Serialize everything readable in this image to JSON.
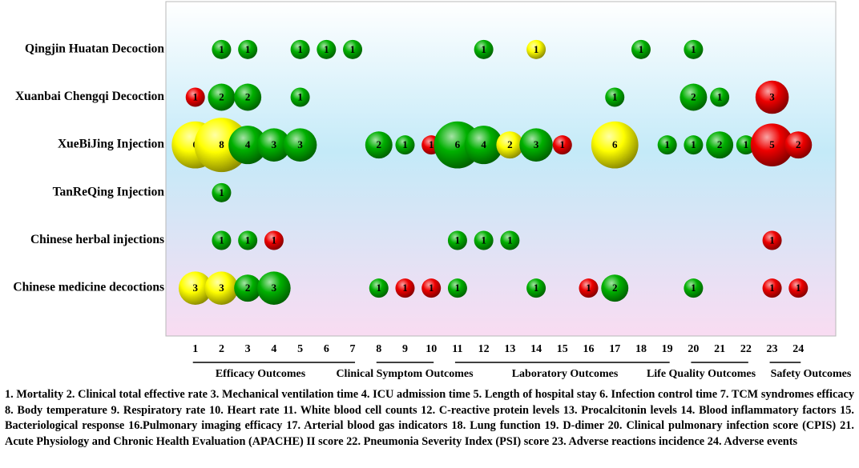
{
  "chart_data": {
    "type": "bubble",
    "xticks": [
      1,
      2,
      3,
      4,
      5,
      6,
      7,
      8,
      9,
      10,
      11,
      12,
      13,
      14,
      15,
      16,
      17,
      18,
      19,
      20,
      21,
      22,
      23,
      24
    ],
    "xlim": [
      0,
      25
    ],
    "groups": [
      {
        "label": "Efficacy Outcomes",
        "start": 1,
        "end": 7
      },
      {
        "label": "Clinical Symptom Outcomes",
        "start": 8,
        "end": 10
      },
      {
        "label": "Laboratory Outcomes",
        "start": 11,
        "end": 19
      },
      {
        "label": "Life Quality Outcomes",
        "start": 20,
        "end": 22
      },
      {
        "label": "Safety Outcomes",
        "start": 23,
        "end": 24
      }
    ],
    "series": [
      {
        "name": "Qingjin Huatan Decoction",
        "x": [
          2,
          3,
          5,
          6,
          7,
          12,
          14,
          18,
          20
        ],
        "values": [
          1,
          1,
          1,
          1,
          1,
          1,
          1,
          1,
          1
        ],
        "colors": [
          "#00b000",
          "#00b000",
          "#00b000",
          "#00b000",
          "#00b000",
          "#00b000",
          "#ffff00",
          "#00b000",
          "#00b000"
        ]
      },
      {
        "name": "Xuanbai Chengqi Decoction",
        "x": [
          1,
          2,
          3,
          5,
          17,
          20,
          21,
          23
        ],
        "values": [
          1,
          2,
          2,
          1,
          1,
          2,
          1,
          3
        ],
        "colors": [
          "#ee0000",
          "#00b000",
          "#00b000",
          "#00b000",
          "#00b000",
          "#00b000",
          "#00b000",
          "#ee0000"
        ]
      },
      {
        "name": "XueBiJing Injection",
        "x": [
          1,
          2,
          3,
          4,
          5,
          8,
          9,
          10,
          11,
          12,
          13,
          14,
          15,
          17,
          19,
          20,
          21,
          22,
          23,
          24
        ],
        "values": [
          6,
          8,
          4,
          3,
          3,
          2,
          1,
          1,
          6,
          4,
          2,
          3,
          1,
          6,
          1,
          1,
          2,
          1,
          5,
          2
        ],
        "colors": [
          "#ffff00",
          "#ffff00",
          "#00b000",
          "#00b000",
          "#00b000",
          "#00b000",
          "#00b000",
          "#ee0000",
          "#00b000",
          "#00b000",
          "#ffff00",
          "#00b000",
          "#ee0000",
          "#ffff00",
          "#00b000",
          "#00b000",
          "#00b000",
          "#00b000",
          "#ee0000",
          "#ee0000"
        ]
      },
      {
        "name": "TanReQing Injection",
        "x": [
          2
        ],
        "values": [
          1
        ],
        "colors": [
          "#00b000"
        ]
      },
      {
        "name": "Chinese herbal injections",
        "x": [
          2,
          3,
          4,
          11,
          12,
          13,
          23
        ],
        "values": [
          1,
          1,
          1,
          1,
          1,
          1,
          1
        ],
        "colors": [
          "#00b000",
          "#00b000",
          "#ee0000",
          "#00b000",
          "#00b000",
          "#00b000",
          "#ee0000"
        ]
      },
      {
        "name": "Chinese medicine decoctions",
        "x": [
          1,
          2,
          3,
          4,
          8,
          9,
          10,
          11,
          14,
          16,
          17,
          20,
          23,
          24
        ],
        "values": [
          3,
          3,
          2,
          3,
          1,
          1,
          1,
          1,
          1,
          1,
          2,
          1,
          1,
          1
        ],
        "colors": [
          "#ffff00",
          "#ffff00",
          "#00b000",
          "#00b000",
          "#00b000",
          "#ee0000",
          "#ee0000",
          "#00b000",
          "#00b000",
          "#ee0000",
          "#00b000",
          "#00b000",
          "#ee0000",
          "#ee0000"
        ]
      }
    ],
    "footnote": "1. Mortality  2. Clinical total effective rate  3. Mechanical ventilation time  4. ICU admission time  5. Length of hospital stay  6. Infection control time  7. TCM syndromes efficacy  8. Body temperature  9. Respiratory rate  10. Heart rate  11. White blood cell counts  12. C-reactive protein levels  13. Procalcitonin levels  14. Blood inflammatory factors  15. Bacteriological response  16.Pulmonary imaging efficacy   17. Arterial blood gas indicators  18. Lung function  19. D-dimer 20. Clinical pulmonary infection score (CPIS)  21. Acute Physiology and Chronic Health Evaluation (APACHE) II score  22. Pneumonia Severity Index (PSI) score  23. Adverse reactions incidence  24. Adverse events"
  }
}
